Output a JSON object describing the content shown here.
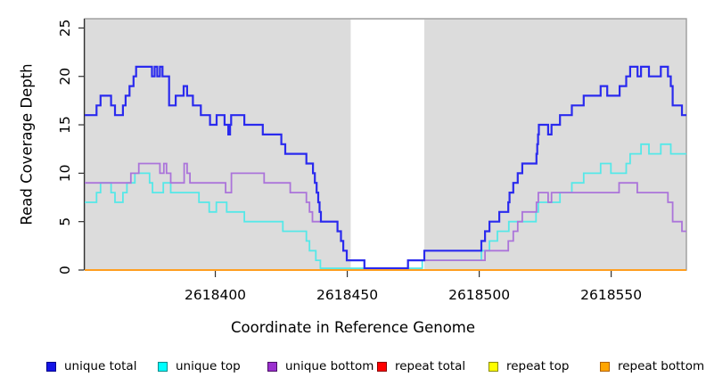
{
  "figure": {
    "x_axis_title": "Coordinate in Reference Genome",
    "y_axis_title": "Read Coverage Depth"
  },
  "chart_data": {
    "type": "line",
    "subtype": "step-coverage-plot",
    "title": "",
    "xlabel": "Coordinate in Reference Genome",
    "ylabel": "Read Coverage Depth",
    "xlim": [
      2618350.5,
      2618578.5
    ],
    "ylim": [
      0,
      26
    ],
    "x_ticks": [
      2618400,
      2618450,
      2618500,
      2618550
    ],
    "y_ticks": [
      0,
      5,
      10,
      15,
      20,
      25
    ],
    "grid": false,
    "plot_bg": "#dcdcdc",
    "border_color": "#9c9c9c",
    "axis_color": "#303030",
    "highlight_band": {
      "x1": 2618451.3,
      "x2": 2618479.2,
      "color": "#ffffff"
    },
    "zero_overlap_segment": {
      "x1": 2618439.8,
      "x2": 2618478.4,
      "color": "#9bd8ab"
    },
    "series": [
      {
        "name": "repeat total",
        "color": "#ee2222",
        "width": 2,
        "zero_raise": 0,
        "points": [
          [
            2618350.5,
            0
          ]
        ]
      },
      {
        "name": "repeat top",
        "color": "#f5e626",
        "width": 2,
        "zero_raise": 0,
        "points": [
          [
            2618350.5,
            0
          ]
        ]
      },
      {
        "name": "unique top",
        "color": "#55e8e8",
        "width": 1.8,
        "zero_raise": 2,
        "points": [
          [
            2618350.5,
            7
          ],
          [
            2618355,
            8
          ],
          [
            2618356.5,
            9
          ],
          [
            2618360.5,
            8
          ],
          [
            2618362,
            7
          ],
          [
            2618365,
            8
          ],
          [
            2618366.5,
            9
          ],
          [
            2618369.5,
            10
          ],
          [
            2618375.1,
            9
          ],
          [
            2618376.2,
            8
          ],
          [
            2618380.3,
            9
          ],
          [
            2618383.1,
            8
          ],
          [
            2618393.8,
            7
          ],
          [
            2618397.7,
            6
          ],
          [
            2618400.4,
            7
          ],
          [
            2618404.3,
            6
          ],
          [
            2618411,
            5
          ],
          [
            2618425.6,
            4
          ],
          [
            2618434.5,
            3
          ],
          [
            2618435.7,
            2
          ],
          [
            2618438.1,
            1
          ],
          [
            2618439.8,
            0
          ],
          [
            2618478.4,
            1
          ],
          [
            2618500.8,
            2
          ],
          [
            2618503.9,
            3
          ],
          [
            2618506.9,
            4
          ],
          [
            2618511.2,
            5
          ],
          [
            2618521.5,
            6
          ],
          [
            2618522.4,
            7
          ],
          [
            2618530.6,
            8
          ],
          [
            2618535.1,
            9
          ],
          [
            2618539.6,
            10
          ],
          [
            2618546,
            11
          ],
          [
            2618549.9,
            10
          ],
          [
            2618555.7,
            11
          ],
          [
            2618557.2,
            12
          ],
          [
            2618561.3,
            13
          ],
          [
            2618564.3,
            12
          ],
          [
            2618568.8,
            13
          ],
          [
            2618572.6,
            12
          ]
        ]
      },
      {
        "name": "unique bottom",
        "color": "#ab74da",
        "width": 1.8,
        "zero_raise": 2,
        "points": [
          [
            2618350.5,
            9
          ],
          [
            2618368,
            10
          ],
          [
            2618371,
            11
          ],
          [
            2618379,
            10
          ],
          [
            2618380.5,
            11
          ],
          [
            2618381.5,
            10
          ],
          [
            2618383.1,
            9
          ],
          [
            2618388.2,
            11
          ],
          [
            2618389.3,
            10
          ],
          [
            2618390.4,
            9
          ],
          [
            2618403.9,
            8
          ],
          [
            2618406.1,
            10
          ],
          [
            2618418.5,
            9
          ],
          [
            2618428.4,
            8
          ],
          [
            2618434.5,
            7
          ],
          [
            2618435.7,
            6
          ],
          [
            2618436.8,
            5
          ],
          [
            2618446.3,
            4
          ],
          [
            2618447.6,
            3
          ],
          [
            2618448.5,
            2
          ],
          [
            2618449.8,
            1
          ],
          [
            2618456.5,
            0
          ],
          [
            2618473,
            1
          ],
          [
            2618502.2,
            2
          ],
          [
            2618511,
            3
          ],
          [
            2618512.9,
            4
          ],
          [
            2618514.6,
            5
          ],
          [
            2618516.3,
            6
          ],
          [
            2618521.7,
            7
          ],
          [
            2618522.4,
            8
          ],
          [
            2618526.1,
            7
          ],
          [
            2618527.4,
            8
          ],
          [
            2618553,
            9
          ],
          [
            2618559.9,
            8
          ],
          [
            2618571.5,
            7
          ],
          [
            2618573.3,
            5
          ],
          [
            2618576.8,
            4
          ]
        ]
      },
      {
        "name": "unique total",
        "color": "#2a2aee",
        "width": 2.2,
        "zero_raise": 2,
        "points": [
          [
            2618350.5,
            16
          ],
          [
            2618355,
            17
          ],
          [
            2618356.5,
            18
          ],
          [
            2618360.5,
            17
          ],
          [
            2618362,
            16
          ],
          [
            2618365,
            17
          ],
          [
            2618366,
            18
          ],
          [
            2618367.5,
            19
          ],
          [
            2618369,
            20
          ],
          [
            2618370,
            21
          ],
          [
            2618376,
            20
          ],
          [
            2618377,
            21
          ],
          [
            2618378,
            20
          ],
          [
            2618379,
            21
          ],
          [
            2618380,
            20
          ],
          [
            2618382.5,
            17
          ],
          [
            2618385,
            18
          ],
          [
            2618388,
            19
          ],
          [
            2618389.3,
            18
          ],
          [
            2618391.5,
            17
          ],
          [
            2618394.5,
            16
          ],
          [
            2618398,
            15
          ],
          [
            2618400.5,
            16
          ],
          [
            2618403.5,
            15
          ],
          [
            2618404.9,
            14
          ],
          [
            2618405.6,
            15
          ],
          [
            2618406,
            16
          ],
          [
            2618411,
            15
          ],
          [
            2618418,
            14
          ],
          [
            2618425,
            13
          ],
          [
            2618426.5,
            12
          ],
          [
            2618434.5,
            11
          ],
          [
            2618437,
            10
          ],
          [
            2618437.7,
            9
          ],
          [
            2618438.4,
            8
          ],
          [
            2618439,
            7
          ],
          [
            2618439.5,
            6
          ],
          [
            2618440,
            5
          ],
          [
            2618446.3,
            4
          ],
          [
            2618447.6,
            3
          ],
          [
            2618448.5,
            2
          ],
          [
            2618449.8,
            1
          ],
          [
            2618456.5,
            0
          ],
          [
            2618473,
            1
          ],
          [
            2618479.2,
            2
          ],
          [
            2618500.8,
            3
          ],
          [
            2618502.2,
            4
          ],
          [
            2618503.9,
            5
          ],
          [
            2618507.6,
            6
          ],
          [
            2618511,
            7
          ],
          [
            2618511.5,
            8
          ],
          [
            2618512.9,
            9
          ],
          [
            2618514.6,
            10
          ],
          [
            2618516.3,
            11
          ],
          [
            2618521.7,
            12
          ],
          [
            2618522,
            13
          ],
          [
            2618522.3,
            14
          ],
          [
            2618522.6,
            15
          ],
          [
            2618526.1,
            14
          ],
          [
            2618527.4,
            15
          ],
          [
            2618530.6,
            16
          ],
          [
            2618535.1,
            17
          ],
          [
            2618539.6,
            18
          ],
          [
            2618546,
            19
          ],
          [
            2618548.5,
            18
          ],
          [
            2618553.2,
            19
          ],
          [
            2618555.7,
            20
          ],
          [
            2618557.2,
            21
          ],
          [
            2618560,
            20
          ],
          [
            2618561.3,
            21
          ],
          [
            2618564.3,
            20
          ],
          [
            2618568.8,
            21
          ],
          [
            2618571.5,
            20
          ],
          [
            2618572.6,
            19
          ],
          [
            2618573.3,
            17
          ],
          [
            2618576.8,
            16
          ]
        ]
      },
      {
        "name": "repeat bottom",
        "color": "#ff9e1f",
        "width": 2,
        "zero_raise": 0,
        "points": [
          [
            2618350.5,
            0
          ]
        ]
      }
    ]
  },
  "legend": {
    "items": [
      {
        "label": "unique total",
        "fill": "#1414e6",
        "border": "#00008b"
      },
      {
        "label": "unique top",
        "fill": "#00ffff",
        "border": "#008b8b"
      },
      {
        "label": "unique bottom",
        "fill": "#9b30cf",
        "border": "#4b0f66"
      },
      {
        "label": "repeat total",
        "fill": "#ff0000",
        "border": "#8b0000"
      },
      {
        "label": "repeat top",
        "fill": "#ffff00",
        "border": "#8b8b00"
      },
      {
        "label": "repeat bottom",
        "fill": "#ffa500",
        "border": "#b06000"
      }
    ]
  }
}
